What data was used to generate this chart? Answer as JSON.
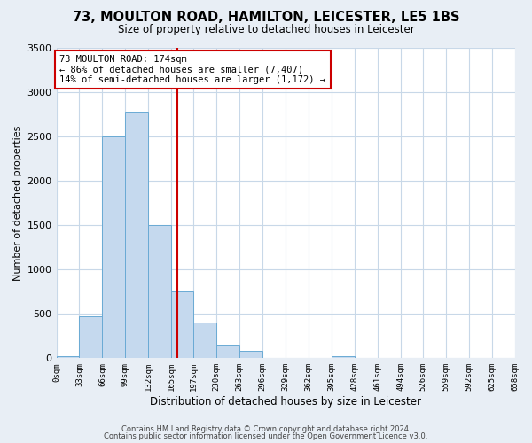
{
  "title": "73, MOULTON ROAD, HAMILTON, LEICESTER, LE5 1BS",
  "subtitle": "Size of property relative to detached houses in Leicester",
  "xlabel": "Distribution of detached houses by size in Leicester",
  "ylabel": "Number of detached properties",
  "bin_edges": [
    0,
    33,
    66,
    99,
    132,
    165,
    197,
    230,
    263,
    296,
    329,
    362,
    395,
    428,
    461,
    494,
    526,
    559,
    592,
    625,
    658
  ],
  "bin_labels": [
    "0sqm",
    "33sqm",
    "66sqm",
    "99sqm",
    "132sqm",
    "165sqm",
    "197sqm",
    "230sqm",
    "263sqm",
    "296sqm",
    "329sqm",
    "362sqm",
    "395sqm",
    "428sqm",
    "461sqm",
    "494sqm",
    "526sqm",
    "559sqm",
    "592sqm",
    "625sqm",
    "658sqm"
  ],
  "counts": [
    20,
    470,
    2500,
    2780,
    1500,
    750,
    400,
    155,
    80,
    0,
    0,
    0,
    20,
    0,
    0,
    0,
    0,
    0,
    0,
    0
  ],
  "bar_color": "#c5d9ee",
  "bar_edge_color": "#6aaad4",
  "vline_x": 174,
  "vline_color": "#cc0000",
  "annotation_line1": "73 MOULTON ROAD: 174sqm",
  "annotation_line2": "← 86% of detached houses are smaller (7,407)",
  "annotation_line3": "14% of semi-detached houses are larger (1,172) →",
  "annotation_box_color": "#ffffff",
  "annotation_box_edge": "#cc0000",
  "ylim": [
    0,
    3500
  ],
  "yticks": [
    0,
    500,
    1000,
    1500,
    2000,
    2500,
    3000,
    3500
  ],
  "footer1": "Contains HM Land Registry data © Crown copyright and database right 2024.",
  "footer2": "Contains public sector information licensed under the Open Government Licence v3.0.",
  "bg_color": "#e8eef5",
  "plot_bg_color": "#ffffff",
  "grid_color": "#c8d8e8"
}
